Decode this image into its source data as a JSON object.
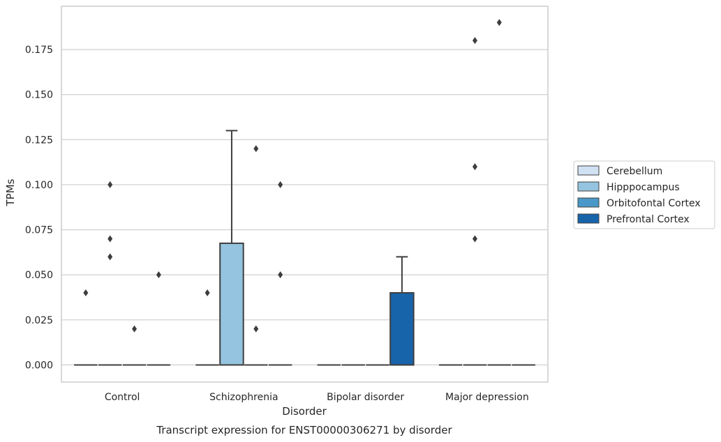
{
  "chart_data": {
    "type": "box",
    "xlabel": "Disorder",
    "ylabel": "TPMs",
    "caption": "Transcript expression for ENST00000306271 by disorder",
    "ylim": [
      -0.0095,
      0.199
    ],
    "yticks": [
      "0.000",
      "0.025",
      "0.050",
      "0.075",
      "0.100",
      "0.125",
      "0.150",
      "0.175"
    ],
    "grid": "horizontal",
    "legend_position": "right",
    "categories": [
      "Control",
      "Schizophrenia",
      "Bipolar disorder",
      "Major depression"
    ],
    "series": [
      {
        "name": "Cerebellum",
        "color": "#d0e1f2"
      },
      {
        "name": "Hipppocampus",
        "color": "#94c4df"
      },
      {
        "name": "Orbitofontal Cortex",
        "color": "#4a98c9"
      },
      {
        "name": "Prefrontal Cortex",
        "color": "#1764ab"
      }
    ],
    "boxes": [
      {
        "category": "Control",
        "series": "Cerebellum",
        "q1": 0,
        "median": 0,
        "q3": 0,
        "whisker_low": 0,
        "whisker_high": 0,
        "outliers": [
          0.04
        ]
      },
      {
        "category": "Control",
        "series": "Hipppocampus",
        "q1": 0,
        "median": 0,
        "q3": 0,
        "whisker_low": 0,
        "whisker_high": 0,
        "outliers": [
          0.1,
          0.07,
          0.06
        ]
      },
      {
        "category": "Control",
        "series": "Orbitofontal Cortex",
        "q1": 0,
        "median": 0,
        "q3": 0,
        "whisker_low": 0,
        "whisker_high": 0,
        "outliers": [
          0.02
        ]
      },
      {
        "category": "Control",
        "series": "Prefrontal Cortex",
        "q1": 0,
        "median": 0,
        "q3": 0,
        "whisker_low": 0,
        "whisker_high": 0,
        "outliers": [
          0.05
        ]
      },
      {
        "category": "Schizophrenia",
        "series": "Cerebellum",
        "q1": 0,
        "median": 0,
        "q3": 0,
        "whisker_low": 0,
        "whisker_high": 0,
        "outliers": [
          0.04
        ]
      },
      {
        "category": "Schizophrenia",
        "series": "Hipppocampus",
        "q1": 0,
        "median": 0,
        "q3": 0.0675,
        "whisker_low": 0,
        "whisker_high": 0.13,
        "outliers": []
      },
      {
        "category": "Schizophrenia",
        "series": "Orbitofontal Cortex",
        "q1": 0,
        "median": 0,
        "q3": 0,
        "whisker_low": 0,
        "whisker_high": 0,
        "outliers": [
          0.12,
          0.02
        ]
      },
      {
        "category": "Schizophrenia",
        "series": "Prefrontal Cortex",
        "q1": 0,
        "median": 0,
        "q3": 0,
        "whisker_low": 0,
        "whisker_high": 0,
        "outliers": [
          0.1,
          0.05
        ]
      },
      {
        "category": "Bipolar disorder",
        "series": "Cerebellum",
        "q1": 0,
        "median": 0,
        "q3": 0,
        "whisker_low": 0,
        "whisker_high": 0,
        "outliers": []
      },
      {
        "category": "Bipolar disorder",
        "series": "Hipppocampus",
        "q1": 0,
        "median": 0,
        "q3": 0,
        "whisker_low": 0,
        "whisker_high": 0,
        "outliers": []
      },
      {
        "category": "Bipolar disorder",
        "series": "Orbitofontal Cortex",
        "q1": 0,
        "median": 0,
        "q3": 0,
        "whisker_low": 0,
        "whisker_high": 0,
        "outliers": []
      },
      {
        "category": "Bipolar disorder",
        "series": "Prefrontal Cortex",
        "q1": 0,
        "median": 0,
        "q3": 0.04,
        "whisker_low": 0,
        "whisker_high": 0.06,
        "outliers": []
      },
      {
        "category": "Major depression",
        "series": "Cerebellum",
        "q1": 0,
        "median": 0,
        "q3": 0,
        "whisker_low": 0,
        "whisker_high": 0,
        "outliers": []
      },
      {
        "category": "Major depression",
        "series": "Hipppocampus",
        "q1": 0,
        "median": 0,
        "q3": 0,
        "whisker_low": 0,
        "whisker_high": 0,
        "outliers": [
          0.18,
          0.11,
          0.07
        ]
      },
      {
        "category": "Major depression",
        "series": "Orbitofontal Cortex",
        "q1": 0,
        "median": 0,
        "q3": 0,
        "whisker_low": 0,
        "whisker_high": 0,
        "outliers": [
          0.19
        ]
      },
      {
        "category": "Major depression",
        "series": "Prefrontal Cortex",
        "q1": 0,
        "median": 0,
        "q3": 0,
        "whisker_low": 0,
        "whisker_high": 0,
        "outliers": []
      }
    ]
  }
}
